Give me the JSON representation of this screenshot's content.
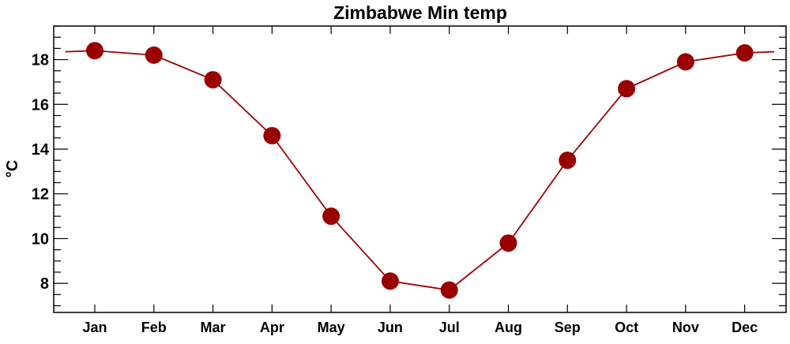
{
  "chart_data": {
    "type": "line",
    "title": "Zimbabwe Min temp",
    "xlabel": "",
    "ylabel": "°C",
    "categories": [
      "Jan",
      "Feb",
      "Mar",
      "Apr",
      "May",
      "Jun",
      "Jul",
      "Aug",
      "Sep",
      "Oct",
      "Nov",
      "Dec"
    ],
    "values": [
      18.4,
      18.2,
      17.1,
      14.6,
      11.0,
      8.1,
      7.7,
      9.8,
      13.5,
      16.7,
      17.9,
      18.3
    ],
    "ylim": [
      6.7,
      19.5
    ],
    "yticks": [
      8,
      10,
      12,
      14,
      16,
      18
    ],
    "yminor_step": 0.5,
    "grid": false,
    "line_color": "#a00000",
    "marker_color": "#990000",
    "wraps_around_year": true
  }
}
